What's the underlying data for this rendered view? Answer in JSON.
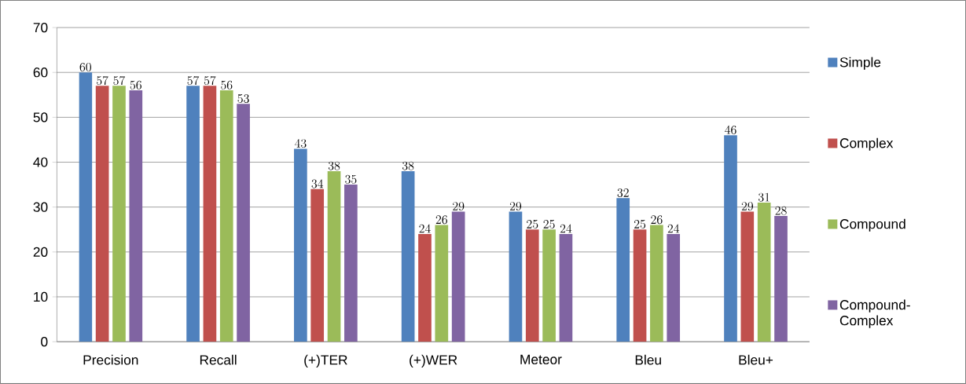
{
  "chart_data": {
    "type": "bar",
    "categories": [
      "Precision",
      "Recall",
      "(+)TER",
      "(+)WER",
      "Meteor",
      "Bleu",
      "Bleu+"
    ],
    "series": [
      {
        "name": "Simple",
        "color": "#4f81bd",
        "values": [
          60,
          57,
          43,
          38,
          29,
          32,
          46
        ]
      },
      {
        "name": "Complex",
        "color": "#c0504d",
        "values": [
          57,
          57,
          34,
          24,
          25,
          25,
          29
        ]
      },
      {
        "name": "Compound",
        "color": "#9bbb59",
        "values": [
          57,
          56,
          38,
          26,
          25,
          26,
          31
        ]
      },
      {
        "name": "Compound-Complex",
        "color": "#8064a2",
        "values": [
          56,
          53,
          35,
          29,
          24,
          24,
          28
        ]
      }
    ],
    "ylim": [
      0,
      70
    ],
    "yticks": [
      0,
      10,
      20,
      30,
      40,
      50,
      60,
      70
    ],
    "grid": "y",
    "legend": "right",
    "data_labels": true
  }
}
